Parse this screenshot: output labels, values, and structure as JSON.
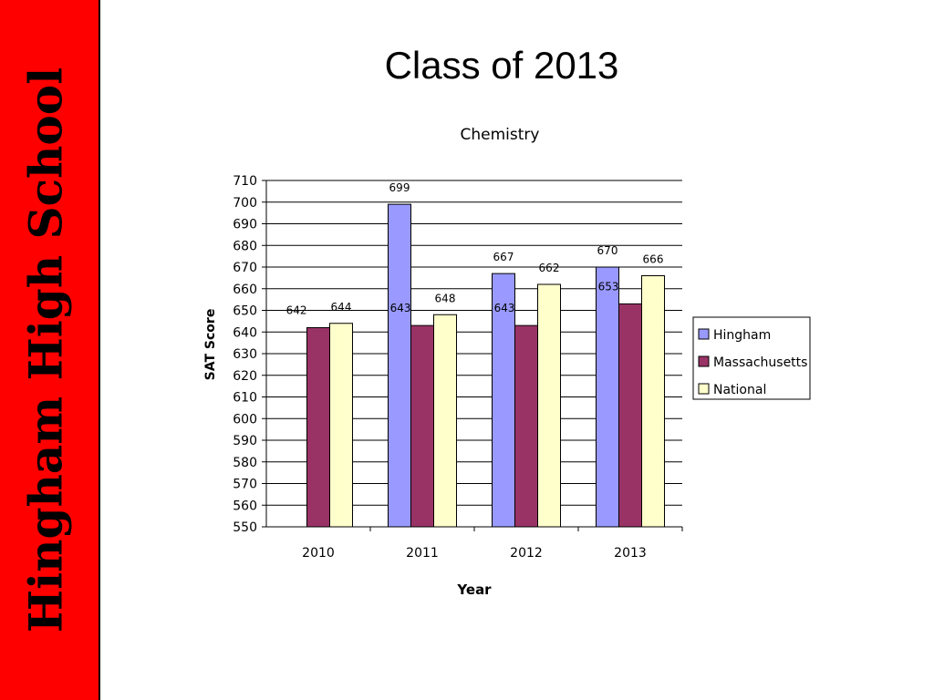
{
  "sidebar": {
    "text": "Hingham High School"
  },
  "slide": {
    "title": "Class of 2013"
  },
  "chart_data": {
    "type": "bar",
    "title": "Chemistry",
    "xlabel": "Year",
    "ylabel": "SAT Score",
    "categories": [
      "2010",
      "2011",
      "2012",
      "2013"
    ],
    "ylim": [
      550,
      710
    ],
    "ytick_step": 10,
    "grid": true,
    "legend": "right",
    "series": [
      {
        "name": "Hingham",
        "color": "#9999ff",
        "values": [
          null,
          699,
          667,
          670
        ]
      },
      {
        "name": "Massachusetts",
        "color": "#993366",
        "values": [
          642,
          643,
          643,
          653
        ]
      },
      {
        "name": "National",
        "color": "#ffffcc",
        "values": [
          644,
          648,
          662,
          666
        ]
      }
    ]
  }
}
